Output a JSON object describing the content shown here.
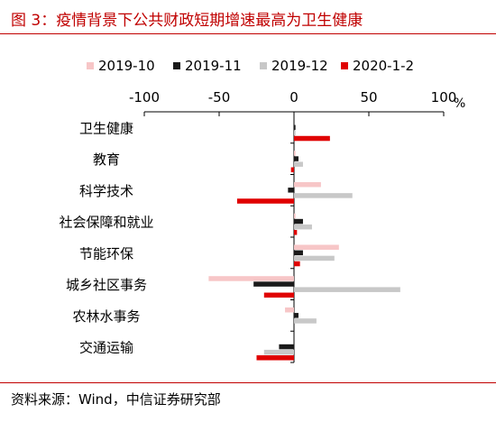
{
  "header": {
    "title": "图 3：疫情背景下公共财政短期增速最高为卫生健康"
  },
  "footer": {
    "source": "资料来源：Wind，中信证券研究部"
  },
  "chart_data": {
    "type": "bar",
    "orientation": "horizontal",
    "unit_label": "%",
    "categories": [
      "卫生健康",
      "教育",
      "科学技术",
      "社会保障和就业",
      "节能环保",
      "城乡社区事务",
      "农林水事务",
      "交通运输"
    ],
    "series": [
      {
        "name": "2019-10",
        "color": "#f7c6c7",
        "values": [
          0,
          1,
          18,
          1,
          30,
          -57,
          -6,
          0
        ]
      },
      {
        "name": "2019-11",
        "color": "#1a1a1a",
        "values": [
          1,
          3,
          -4,
          6,
          6,
          -27,
          3,
          -10
        ]
      },
      {
        "name": "2019-12",
        "color": "#c8c8c8",
        "values": [
          1,
          6,
          39,
          12,
          27,
          71,
          15,
          -20
        ]
      },
      {
        "name": "2020-1-2",
        "color": "#e00000",
        "values": [
          24,
          -2,
          -38,
          2,
          4,
          -20,
          0,
          -25
        ]
      }
    ],
    "x_ticks": [
      -100,
      -50,
      0,
      50,
      100
    ],
    "x_tick_labels": [
      "-100",
      "-50",
      "0",
      "50",
      "100"
    ],
    "xlim": [
      -100,
      100
    ],
    "x_axis_position": "top",
    "legend_position": "top",
    "grid": false
  }
}
